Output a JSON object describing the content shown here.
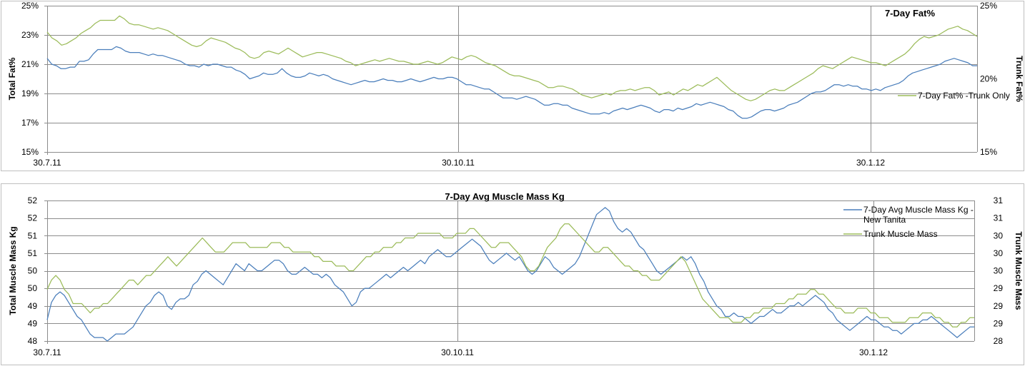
{
  "chart_data": [
    {
      "type": "line",
      "title": "7-Day Fat%",
      "xlabel": "",
      "ylabel": "Total Fat%",
      "y2label": "Trunk Fat%",
      "ylim": [
        15,
        25
      ],
      "y_ticks": [
        "15%",
        "17%",
        "19%",
        "21%",
        "23%",
        "25%"
      ],
      "y2lim": [
        15,
        25
      ],
      "y2_ticks": [
        "15%",
        "20%",
        "25%"
      ],
      "x_ticks": [
        "30.7.11",
        "30.10.11",
        "30.1.12"
      ],
      "grid": true,
      "legend_position": "right",
      "series": [
        {
          "name": "",
          "color": "#4a7ebb",
          "axis": "left",
          "values": [
            21.4,
            21.0,
            20.9,
            20.7,
            20.7,
            20.8,
            20.8,
            21.2,
            21.2,
            21.3,
            21.7,
            22.0,
            22.0,
            22.0,
            22.0,
            22.2,
            22.1,
            21.9,
            21.8,
            21.8,
            21.8,
            21.7,
            21.6,
            21.7,
            21.6,
            21.6,
            21.5,
            21.4,
            21.3,
            21.2,
            21.0,
            20.9,
            20.9,
            20.8,
            21.0,
            20.9,
            21.0,
            21.0,
            20.9,
            20.8,
            20.8,
            20.6,
            20.5,
            20.3,
            20.0,
            20.1,
            20.2,
            20.4,
            20.3,
            20.3,
            20.4,
            20.7,
            20.4,
            20.2,
            20.1,
            20.1,
            20.2,
            20.4,
            20.3,
            20.2,
            20.3,
            20.2,
            20.0,
            19.9,
            19.8,
            19.7,
            19.6,
            19.7,
            19.8,
            19.9,
            19.8,
            19.8,
            19.9,
            20.0,
            19.9,
            19.9,
            19.8,
            19.8,
            19.9,
            20.0,
            19.9,
            19.8,
            19.9,
            20.0,
            20.1,
            20.0,
            20.0,
            20.1,
            20.1,
            20.0,
            19.8,
            19.6,
            19.6,
            19.5,
            19.4,
            19.3,
            19.3,
            19.1,
            18.9,
            18.7,
            18.7,
            18.7,
            18.6,
            18.7,
            18.8,
            18.7,
            18.6,
            18.4,
            18.2,
            18.2,
            18.3,
            18.3,
            18.2,
            18.2,
            18.0,
            17.9,
            17.8,
            17.7,
            17.6,
            17.6,
            17.6,
            17.7,
            17.6,
            17.8,
            17.9,
            18.0,
            17.9,
            18.0,
            18.1,
            18.2,
            18.1,
            18.0,
            17.8,
            17.7,
            17.9,
            17.9,
            17.8,
            18.0,
            17.9,
            18.0,
            18.1,
            18.3,
            18.2,
            18.3,
            18.4,
            18.3,
            18.2,
            18.1,
            17.9,
            17.8,
            17.5,
            17.3,
            17.3,
            17.4,
            17.6,
            17.8,
            17.9,
            17.9,
            17.8,
            17.9,
            18.0,
            18.2,
            18.3,
            18.4,
            18.6,
            18.8,
            19.0,
            19.1,
            19.1,
            19.2,
            19.4,
            19.6,
            19.6,
            19.5,
            19.6,
            19.5,
            19.5,
            19.3,
            19.3,
            19.2,
            19.3,
            19.2,
            19.4,
            19.5,
            19.6,
            19.7,
            19.9,
            20.2,
            20.4,
            20.5,
            20.6,
            20.7,
            20.8,
            20.9,
            21.0,
            21.2,
            21.3,
            21.4,
            21.3,
            21.2,
            21.1,
            20.9,
            20.9
          ]
        },
        {
          "name": "7-Day Fat% -Trunk Only",
          "color": "#9bbb59",
          "axis": "right",
          "values": [
            23.2,
            22.8,
            22.6,
            22.3,
            22.4,
            22.6,
            22.8,
            23.1,
            23.3,
            23.5,
            23.8,
            24.0,
            24.0,
            24.0,
            24.0,
            24.3,
            24.1,
            23.8,
            23.7,
            23.7,
            23.6,
            23.5,
            23.4,
            23.5,
            23.4,
            23.3,
            23.1,
            22.9,
            22.7,
            22.5,
            22.3,
            22.2,
            22.3,
            22.6,
            22.8,
            22.7,
            22.6,
            22.5,
            22.3,
            22.1,
            22.0,
            21.8,
            21.5,
            21.4,
            21.5,
            21.8,
            21.9,
            21.8,
            21.7,
            21.9,
            22.1,
            21.9,
            21.7,
            21.5,
            21.6,
            21.7,
            21.8,
            21.8,
            21.7,
            21.6,
            21.5,
            21.4,
            21.2,
            21.1,
            20.9,
            21.0,
            21.1,
            21.2,
            21.3,
            21.2,
            21.3,
            21.4,
            21.3,
            21.2,
            21.2,
            21.1,
            21.0,
            21.0,
            21.1,
            21.2,
            21.1,
            21.0,
            21.1,
            21.3,
            21.5,
            21.4,
            21.3,
            21.5,
            21.6,
            21.5,
            21.3,
            21.1,
            21.0,
            20.9,
            20.7,
            20.5,
            20.3,
            20.2,
            20.2,
            20.1,
            20.0,
            19.9,
            19.8,
            19.6,
            19.4,
            19.4,
            19.5,
            19.5,
            19.4,
            19.3,
            19.1,
            18.9,
            18.8,
            18.7,
            18.8,
            18.9,
            19.0,
            18.9,
            19.1,
            19.2,
            19.2,
            19.3,
            19.2,
            19.3,
            19.4,
            19.4,
            19.2,
            18.9,
            19.0,
            19.1,
            18.9,
            19.1,
            19.3,
            19.2,
            19.4,
            19.6,
            19.5,
            19.7,
            19.9,
            20.1,
            19.8,
            19.5,
            19.2,
            19.0,
            18.8,
            18.6,
            18.5,
            18.6,
            18.8,
            19.0,
            19.2,
            19.3,
            19.2,
            19.2,
            19.4,
            19.6,
            19.8,
            20.0,
            20.2,
            20.4,
            20.7,
            20.9,
            20.8,
            20.7,
            20.9,
            21.1,
            21.3,
            21.5,
            21.4,
            21.3,
            21.2,
            21.1,
            21.1,
            21.0,
            20.9,
            21.1,
            21.3,
            21.5,
            21.7,
            22.0,
            22.4,
            22.7,
            22.9,
            22.8,
            22.9,
            23.0,
            23.2,
            23.4,
            23.5,
            23.6,
            23.4,
            23.3,
            23.1,
            22.9
          ]
        }
      ]
    },
    {
      "type": "line",
      "title": "7-Day Avg Muscle Mass  Kg",
      "xlabel": "",
      "ylabel": "Total Muscle Mass  Kg",
      "y2label": "Trunk Muscle Mass",
      "ylim": [
        48,
        52
      ],
      "y_ticks": [
        "48",
        "49",
        "49",
        "50",
        "50",
        "51",
        "51",
        "52",
        "52"
      ],
      "y2lim": [
        28,
        31
      ],
      "y2_ticks": [
        "28",
        "29",
        "29",
        "29",
        "30",
        "30",
        "30",
        "31",
        "31"
      ],
      "x_ticks": [
        "30.7.11",
        "30.10.11",
        "30.1.12"
      ],
      "grid": true,
      "legend_position": "top-right",
      "series": [
        {
          "name": "7-Day Avg Muscle Mass Kg - New Tanita",
          "legend_lines": [
            "7-Day Avg Muscle Mass Kg -",
            "New Tanita"
          ],
          "color": "#4a7ebb",
          "axis": "left",
          "values": [
            48.6,
            49.1,
            49.3,
            49.4,
            49.3,
            49.1,
            48.9,
            48.7,
            48.6,
            48.4,
            48.2,
            48.1,
            48.1,
            48.1,
            48.0,
            48.1,
            48.2,
            48.2,
            48.2,
            48.3,
            48.4,
            48.6,
            48.8,
            49.0,
            49.1,
            49.3,
            49.4,
            49.3,
            49.0,
            48.9,
            49.1,
            49.2,
            49.2,
            49.3,
            49.6,
            49.7,
            49.9,
            50.0,
            49.9,
            49.8,
            49.7,
            49.6,
            49.8,
            50.0,
            50.2,
            50.1,
            50.0,
            50.2,
            50.1,
            50.0,
            50.0,
            50.1,
            50.2,
            50.3,
            50.3,
            50.2,
            50.0,
            49.9,
            49.9,
            50.0,
            50.1,
            50.0,
            49.9,
            49.9,
            49.8,
            49.9,
            49.8,
            49.6,
            49.5,
            49.4,
            49.2,
            49.0,
            49.1,
            49.4,
            49.5,
            49.5,
            49.6,
            49.7,
            49.8,
            49.9,
            49.8,
            49.9,
            50.0,
            50.1,
            50.0,
            50.1,
            50.2,
            50.3,
            50.2,
            50.4,
            50.5,
            50.6,
            50.5,
            50.4,
            50.4,
            50.5,
            50.6,
            50.7,
            50.8,
            50.9,
            50.8,
            50.7,
            50.5,
            50.3,
            50.2,
            50.3,
            50.4,
            50.5,
            50.4,
            50.3,
            50.4,
            50.2,
            50.0,
            49.9,
            50.0,
            50.2,
            50.4,
            50.3,
            50.1,
            50.0,
            49.9,
            50.0,
            50.1,
            50.2,
            50.4,
            50.7,
            51.0,
            51.3,
            51.6,
            51.7,
            51.8,
            51.7,
            51.4,
            51.2,
            51.1,
            51.2,
            51.1,
            50.9,
            50.7,
            50.6,
            50.4,
            50.2,
            50.0,
            49.9,
            50.0,
            50.1,
            50.2,
            50.3,
            50.4,
            50.3,
            50.4,
            50.2,
            49.9,
            49.7,
            49.4,
            49.2,
            49.0,
            48.9,
            48.7,
            48.7,
            48.8,
            48.7,
            48.7,
            48.6,
            48.5,
            48.6,
            48.7,
            48.7,
            48.8,
            48.9,
            48.8,
            48.8,
            48.9,
            49.0,
            49.0,
            49.1,
            49.0,
            49.1,
            49.2,
            49.3,
            49.2,
            49.1,
            48.9,
            48.8,
            48.6,
            48.5,
            48.4,
            48.3,
            48.4,
            48.5,
            48.6,
            48.7,
            48.6,
            48.6,
            48.5,
            48.4,
            48.4,
            48.3,
            48.3,
            48.2,
            48.3,
            48.4,
            48.5,
            48.5,
            48.6,
            48.6,
            48.7,
            48.6,
            48.5,
            48.4,
            48.3,
            48.2,
            48.1,
            48.2,
            48.3,
            48.4,
            48.4
          ]
        },
        {
          "name": "Trunk Muscle Mass",
          "legend_lines": [
            "Trunk Muscle Mass"
          ],
          "color": "#9bbb59",
          "axis": "right",
          "values": [
            29.1,
            29.3,
            29.4,
            29.3,
            29.1,
            29.0,
            28.8,
            28.8,
            28.8,
            28.7,
            28.6,
            28.7,
            28.7,
            28.8,
            28.8,
            28.9,
            29.0,
            29.1,
            29.2,
            29.3,
            29.3,
            29.2,
            29.3,
            29.4,
            29.4,
            29.5,
            29.6,
            29.7,
            29.8,
            29.7,
            29.6,
            29.7,
            29.8,
            29.9,
            30.0,
            30.1,
            30.2,
            30.1,
            30.0,
            29.9,
            29.9,
            29.9,
            30.0,
            30.1,
            30.1,
            30.1,
            30.1,
            30.0,
            30.0,
            30.0,
            30.0,
            30.0,
            30.1,
            30.1,
            30.1,
            30.0,
            30.0,
            29.9,
            29.9,
            29.9,
            29.9,
            29.9,
            29.8,
            29.8,
            29.7,
            29.7,
            29.7,
            29.6,
            29.6,
            29.6,
            29.5,
            29.5,
            29.6,
            29.7,
            29.8,
            29.8,
            29.9,
            29.9,
            30.0,
            30.0,
            30.0,
            30.1,
            30.1,
            30.2,
            30.2,
            30.2,
            30.3,
            30.3,
            30.3,
            30.3,
            30.3,
            30.3,
            30.2,
            30.2,
            30.2,
            30.3,
            30.3,
            30.3,
            30.4,
            30.4,
            30.3,
            30.2,
            30.1,
            30.0,
            30.0,
            30.1,
            30.1,
            30.1,
            30.0,
            29.9,
            29.8,
            29.6,
            29.5,
            29.5,
            29.6,
            29.8,
            30.0,
            30.1,
            30.2,
            30.4,
            30.5,
            30.5,
            30.4,
            30.3,
            30.2,
            30.1,
            30.0,
            29.9,
            29.9,
            30.0,
            30.0,
            29.9,
            29.8,
            29.7,
            29.6,
            29.6,
            29.5,
            29.5,
            29.4,
            29.4,
            29.3,
            29.3,
            29.3,
            29.4,
            29.5,
            29.6,
            29.7,
            29.8,
            29.7,
            29.5,
            29.3,
            29.1,
            28.9,
            28.8,
            28.7,
            28.6,
            28.5,
            28.5,
            28.5,
            28.4,
            28.4,
            28.4,
            28.5,
            28.5,
            28.6,
            28.6,
            28.7,
            28.7,
            28.7,
            28.8,
            28.8,
            28.8,
            28.9,
            28.9,
            29.0,
            29.0,
            29.0,
            29.1,
            29.1,
            29.0,
            29.0,
            28.9,
            28.8,
            28.7,
            28.7,
            28.6,
            28.6,
            28.6,
            28.7,
            28.7,
            28.7,
            28.6,
            28.6,
            28.5,
            28.5,
            28.5,
            28.4,
            28.4,
            28.4,
            28.4,
            28.5,
            28.5,
            28.5,
            28.6,
            28.6,
            28.6,
            28.5,
            28.5,
            28.4,
            28.4,
            28.3,
            28.3,
            28.4,
            28.4,
            28.5,
            28.5
          ]
        }
      ]
    }
  ]
}
